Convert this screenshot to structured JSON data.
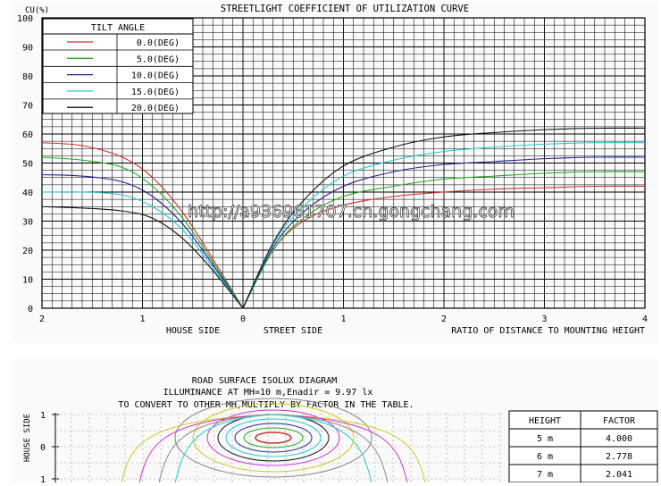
{
  "chart_data": [
    {
      "type": "line",
      "title": "STREETLIGHT COEFFICIENT OF UTILIZATION CURVE",
      "ylabel": "CU(%)",
      "xlabel": "RATIO OF DISTANCE TO MOUNTING HEIGHT",
      "side_labels": {
        "house": "HOUSE SIDE",
        "street": "STREET SIDE"
      },
      "xlim": [
        -2,
        4
      ],
      "ylim": [
        0,
        100
      ],
      "x_ticks": [
        {
          "v": -2,
          "label": "2"
        },
        {
          "v": -1,
          "label": "1"
        },
        {
          "v": 0,
          "label": "0"
        },
        {
          "v": 1,
          "label": "1"
        },
        {
          "v": 2,
          "label": "2"
        },
        {
          "v": 3,
          "label": "3"
        },
        {
          "v": 4,
          "label": "4"
        }
      ],
      "y_ticks": [
        0,
        10,
        20,
        30,
        40,
        50,
        60,
        70,
        80,
        90,
        100
      ],
      "grid": true,
      "legend": {
        "title": "TILT ANGLE",
        "placement": "top-left"
      },
      "watermark": "http://a936961707.cn.gongchang.com",
      "series": [
        {
          "name": "0.0(DEG)",
          "color": "#cc3333",
          "x": [
            -2,
            -1.6,
            -1.2,
            -0.9,
            -0.6,
            -0.3,
            0,
            0.3,
            0.6,
            1.0,
            1.5,
            2.0,
            2.5,
            3.0,
            3.5,
            4.0
          ],
          "y": [
            57,
            56,
            52,
            45,
            33,
            17,
            0,
            20,
            30,
            35.5,
            38.5,
            40,
            41,
            41.5,
            42,
            42
          ]
        },
        {
          "name": "5.0(DEG)",
          "color": "#22aa22",
          "x": [
            -2,
            -1.6,
            -1.2,
            -0.9,
            -0.6,
            -0.3,
            0,
            0.3,
            0.6,
            1.0,
            1.5,
            2.0,
            2.5,
            3.0,
            3.5,
            4.0
          ],
          "y": [
            52,
            51,
            48.5,
            42,
            31,
            16,
            0,
            20,
            31,
            38.5,
            42,
            44.5,
            45.5,
            46.5,
            47,
            47
          ]
        },
        {
          "name": "10.0(DEG)",
          "color": "#222299",
          "x": [
            -2,
            -1.6,
            -1.2,
            -0.9,
            -0.6,
            -0.3,
            0,
            0.3,
            0.6,
            1.0,
            1.5,
            2.0,
            2.5,
            3.0,
            3.5,
            4.0
          ],
          "y": [
            46,
            45.5,
            43.5,
            38.5,
            29,
            15,
            0,
            21,
            33,
            42,
            47,
            49.5,
            50.5,
            51.5,
            52,
            52
          ]
        },
        {
          "name": "15.0(DEG)",
          "color": "#22cccc",
          "x": [
            -2,
            -1.6,
            -1.2,
            -0.9,
            -0.6,
            -0.3,
            0,
            0.3,
            0.6,
            1.0,
            1.5,
            2.0,
            2.5,
            3.0,
            3.5,
            4.0
          ],
          "y": [
            40,
            40,
            39,
            35,
            27,
            14,
            0,
            22,
            35,
            45.5,
            51,
            54,
            55.5,
            56.5,
            57,
            57
          ]
        },
        {
          "name": "20.0(DEG)",
          "color": "#111111",
          "x": [
            -2,
            -1.6,
            -1.2,
            -0.9,
            -0.6,
            -0.3,
            0,
            0.3,
            0.6,
            1.0,
            1.5,
            2.0,
            2.5,
            3.0,
            3.5,
            4.0
          ],
          "y": [
            35,
            34.5,
            33.5,
            31,
            24,
            13,
            0,
            22.5,
            37,
            49,
            55.5,
            59,
            60.5,
            61.5,
            62,
            62
          ]
        }
      ]
    },
    {
      "type": "contour",
      "title": "ROAD SURFACE ISOLUX DIAGRAM",
      "subtitle": "ILLUMINANCE AT MH=10 m,Enadir  = 9.97 lx",
      "note": "TO CONVERT TO OTHER MH,MULTIPLY BY FACTOR IN THE TABLE.",
      "ylabel": "HOUSE SIDE",
      "y_ticks": [
        {
          "v": 1,
          "label": "1"
        },
        {
          "v": 0,
          "label": "0"
        },
        {
          "v": -1,
          "label": "1"
        }
      ],
      "contour_colors": [
        "#cc3333",
        "#22aa22",
        "#222299",
        "#22cccc",
        "#111111",
        "#cc33cc",
        "#cccc22",
        "#888888"
      ]
    },
    {
      "type": "table",
      "columns": [
        "HEIGHT",
        "FACTOR"
      ],
      "rows": [
        [
          "5 m",
          "4.000"
        ],
        [
          "6 m",
          "2.778"
        ],
        [
          "7 m",
          "2.041"
        ]
      ]
    }
  ]
}
